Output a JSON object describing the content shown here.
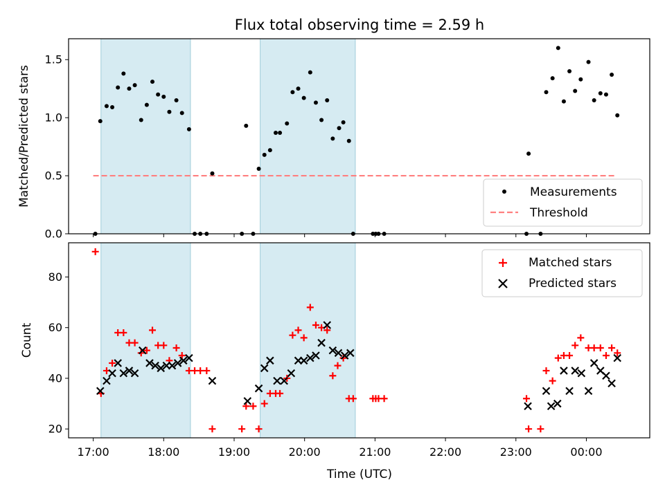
{
  "chart_data": {
    "type": "scatter",
    "title": "Flux total observing time = 2.59 h",
    "xlabel": "Time (UTC)",
    "x_unit": "hours since 17:00 UTC",
    "xlim": [
      -0.35,
      7.9
    ],
    "x_ticks": [
      {
        "x": 0,
        "label": "17:00"
      },
      {
        "x": 1,
        "label": "18:00"
      },
      {
        "x": 2,
        "label": "19:00"
      },
      {
        "x": 3,
        "label": "20:00"
      },
      {
        "x": 4,
        "label": "21:00"
      },
      {
        "x": 5,
        "label": "22:00"
      },
      {
        "x": 6,
        "label": "23:00"
      },
      {
        "x": 7,
        "label": "00:00"
      }
    ],
    "highlight_intervals": [
      [
        0.11,
        1.38
      ],
      [
        2.37,
        3.72
      ]
    ],
    "top_panel": {
      "ylabel": "Matched/Predicted stars",
      "ylim": [
        0,
        1.68
      ],
      "y_ticks": [
        {
          "y": 0,
          "label": "0.0"
        },
        {
          "y": 0.5,
          "label": "0.5"
        },
        {
          "y": 1.0,
          "label": "1.0"
        },
        {
          "y": 1.5,
          "label": "1.5"
        }
      ],
      "legend": {
        "position": "lower-right",
        "entries": [
          "Measurements",
          "Threshold"
        ]
      },
      "threshold": {
        "name": "Threshold",
        "value": 0.5,
        "x_range": [
          0.0,
          7.42
        ]
      },
      "measurements": {
        "name": "Measurements",
        "x": [
          0.03,
          0.1,
          0.19,
          0.27,
          0.35,
          0.43,
          0.51,
          0.59,
          0.68,
          0.76,
          0.84,
          0.92,
          1.0,
          1.08,
          1.18,
          1.26,
          1.36,
          1.44,
          1.52,
          1.61,
          1.69,
          2.11,
          2.17,
          2.27,
          2.35,
          2.43,
          2.51,
          2.59,
          2.65,
          2.75,
          2.83,
          2.91,
          2.99,
          3.08,
          3.16,
          3.24,
          3.32,
          3.4,
          3.49,
          3.55,
          3.63,
          3.69,
          3.97,
          4.01,
          4.05,
          4.13,
          6.15,
          6.18,
          6.35,
          6.43,
          6.52,
          6.6,
          6.68,
          6.76,
          6.84,
          6.92,
          7.03,
          7.11,
          7.2,
          7.28,
          7.36,
          7.44
        ],
        "y": [
          0.0,
          0.97,
          1.1,
          1.09,
          1.26,
          1.38,
          1.25,
          1.28,
          0.98,
          1.11,
          1.31,
          1.2,
          1.18,
          1.05,
          1.15,
          1.04,
          0.9,
          0.0,
          0.0,
          0.0,
          0.52,
          0.0,
          0.93,
          0.0,
          0.56,
          0.68,
          0.72,
          0.87,
          0.87,
          0.95,
          1.22,
          1.25,
          1.17,
          1.39,
          1.13,
          0.98,
          1.15,
          0.82,
          0.91,
          0.96,
          0.8,
          0.0,
          0.0,
          0.0,
          0.0,
          0.0,
          0.0,
          0.69,
          0.0,
          1.22,
          1.34,
          1.6,
          1.14,
          1.4,
          1.23,
          1.33,
          1.48,
          1.15,
          1.21,
          1.2,
          1.37,
          1.02
        ]
      }
    },
    "bottom_panel": {
      "ylabel": "Count",
      "ylim": [
        16.5,
        93.5
      ],
      "y_ticks": [
        {
          "y": 20,
          "label": "20"
        },
        {
          "y": 40,
          "label": "40"
        },
        {
          "y": 60,
          "label": "60"
        },
        {
          "y": 80,
          "label": "80"
        }
      ],
      "legend": {
        "position": "upper-right",
        "entries": [
          "Matched stars",
          "Predicted stars"
        ]
      },
      "matched": {
        "name": "Matched stars",
        "color": "#ff0000",
        "x": [
          0.03,
          0.11,
          0.19,
          0.27,
          0.35,
          0.43,
          0.51,
          0.59,
          0.68,
          0.76,
          0.84,
          0.92,
          1.0,
          1.08,
          1.18,
          1.26,
          1.36,
          1.44,
          1.52,
          1.61,
          1.69,
          2.11,
          2.17,
          2.27,
          2.35,
          2.43,
          2.51,
          2.59,
          2.65,
          2.75,
          2.83,
          2.91,
          2.99,
          3.08,
          3.16,
          3.24,
          3.32,
          3.4,
          3.47,
          3.55,
          3.63,
          3.69,
          3.97,
          4.01,
          4.05,
          4.13,
          6.15,
          6.18,
          6.35,
          6.43,
          6.52,
          6.6,
          6.68,
          6.76,
          6.84,
          6.92,
          7.03,
          7.11,
          7.2,
          7.28,
          7.36,
          7.44
        ],
        "y": [
          90,
          34,
          43,
          46,
          58,
          58,
          54,
          54,
          50,
          51,
          59,
          53,
          53,
          47,
          52,
          49,
          43,
          43,
          43,
          43,
          20,
          20,
          29,
          29,
          20,
          30,
          34,
          34,
          34,
          40,
          57,
          59,
          56,
          68,
          61,
          60,
          59,
          41,
          45,
          48,
          32,
          32,
          32,
          32,
          32,
          32,
          32,
          20,
          20,
          43,
          39,
          48,
          49,
          49,
          53,
          56,
          52,
          52,
          52,
          49,
          52,
          50
        ]
      },
      "predicted": {
        "name": "Predicted stars",
        "color": "#000000",
        "x": [
          0.1,
          0.19,
          0.27,
          0.35,
          0.43,
          0.51,
          0.59,
          0.7,
          0.8,
          0.88,
          0.96,
          1.04,
          1.12,
          1.2,
          1.28,
          1.36,
          1.69,
          2.19,
          2.35,
          2.43,
          2.51,
          2.61,
          2.71,
          2.81,
          2.91,
          2.99,
          3.08,
          3.16,
          3.24,
          3.32,
          3.4,
          3.48,
          3.57,
          3.65,
          6.17,
          6.43,
          6.5,
          6.59,
          6.68,
          6.76,
          6.84,
          6.93,
          7.03,
          7.11,
          7.2,
          7.28,
          7.36,
          7.44
        ],
        "y": [
          35,
          39,
          42,
          46,
          42,
          43,
          42,
          51,
          46,
          45,
          44,
          45,
          45,
          46,
          47,
          48,
          39,
          31,
          36,
          44,
          47,
          39,
          39,
          42,
          47,
          47,
          48,
          49,
          54,
          61,
          51,
          50,
          49,
          50,
          29,
          35,
          29,
          30,
          43,
          35,
          43,
          42,
          35,
          46,
          43,
          41,
          38,
          48
        ]
      }
    }
  }
}
